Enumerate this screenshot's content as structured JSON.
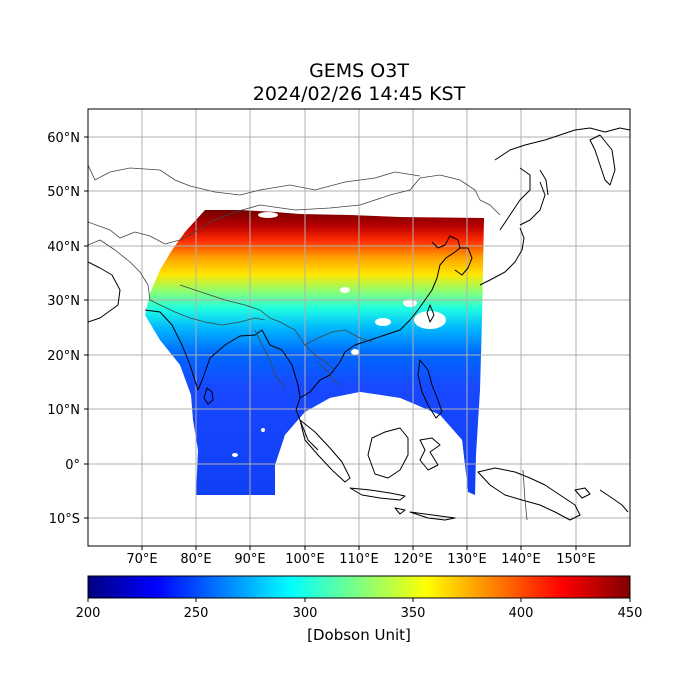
{
  "title": {
    "line1": "GEMS O3T",
    "line2": "2024/02/26 14:45 KST"
  },
  "map": {
    "lon_range": [
      60,
      160
    ],
    "lat_range": [
      -15,
      65
    ],
    "lon_ticks": [
      "70°E",
      "80°E",
      "90°E",
      "100°E",
      "110°E",
      "120°E",
      "130°E",
      "140°E",
      "150°E"
    ],
    "lat_ticks": [
      "60°N",
      "50°N",
      "40°N",
      "30°N",
      "20°N",
      "10°N",
      "0°",
      "10°S"
    ],
    "grid": true
  },
  "colorbar": {
    "min": 200,
    "max": 450,
    "ticks": [
      "200",
      "250",
      "300",
      "350",
      "400",
      "450"
    ],
    "label": "[Dobson Unit]",
    "colormap": "jet"
  },
  "chart_data": {
    "type": "heatmap",
    "variable": "total column ozone",
    "units": "Dobson Unit",
    "value_range": [
      200,
      450
    ],
    "approx_values_by_latitude": [
      {
        "lat": 45,
        "value": 430
      },
      {
        "lat": 40,
        "value": 400
      },
      {
        "lat": 35,
        "value": 350
      },
      {
        "lat": 30,
        "value": 305
      },
      {
        "lat": 25,
        "value": 275
      },
      {
        "lat": 20,
        "value": 255
      },
      {
        "lat": 10,
        "value": 248
      },
      {
        "lat": 0,
        "value": 245
      },
      {
        "lat": -5,
        "value": 245
      }
    ]
  }
}
